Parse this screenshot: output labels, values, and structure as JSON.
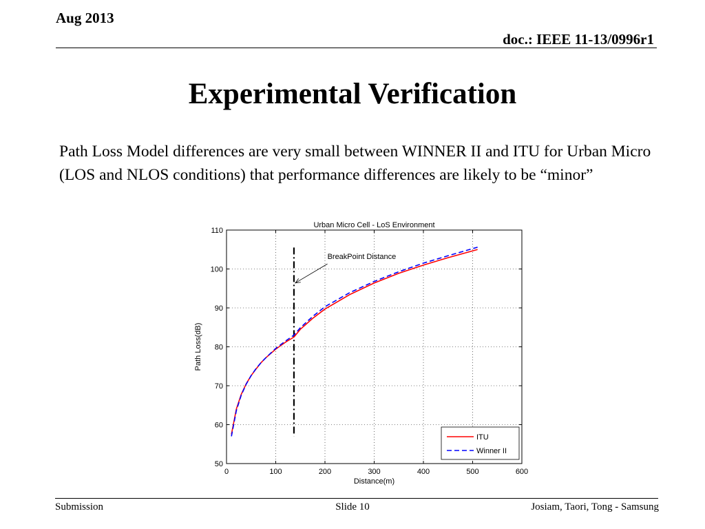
{
  "header": {
    "date": "Aug 2013",
    "doc_id": "doc.: IEEE 11-13/0996r1"
  },
  "slide": {
    "title": "Experimental Verification",
    "body": "Path Loss Model differences are very small between WINNER II and ITU for Urban Micro (LOS and NLOS conditions) that performance differences are likely to be “minor”"
  },
  "footer": {
    "left": "Submission",
    "center": "Slide 10",
    "right": "Josiam, Taori, Tong - Samsung"
  },
  "chart_data": {
    "type": "line",
    "title": "Urban Micro Cell - LoS Environment",
    "xlabel": "Distance(m)",
    "ylabel": "Path Loss(dB)",
    "xlim": [
      0,
      600
    ],
    "ylim": [
      50,
      110
    ],
    "xticks": [
      0,
      100,
      200,
      300,
      400,
      500,
      600
    ],
    "yticks": [
      50,
      60,
      70,
      80,
      90,
      100,
      110
    ],
    "grid": true,
    "legend_position": "bottom-right",
    "annotation": {
      "text": "BreakPoint Distance",
      "x": 137,
      "y_range": [
        57,
        105.5
      ]
    },
    "series": [
      {
        "name": "ITU",
        "color": "#ff0000",
        "style": "solid",
        "x": [
          10,
          20,
          30,
          40,
          50,
          60,
          70,
          80,
          100,
          120,
          137,
          150,
          175,
          200,
          250,
          300,
          350,
          400,
          450,
          510
        ],
        "y": [
          57.5,
          64,
          67.8,
          70.5,
          72.6,
          74.3,
          75.9,
          77.2,
          79.4,
          81.2,
          82.5,
          84.5,
          87.3,
          89.7,
          93.4,
          96.4,
          98.9,
          101.0,
          102.9,
          105.0
        ]
      },
      {
        "name": "Winner II",
        "color": "#0000ff",
        "style": "dashed",
        "x": [
          10,
          20,
          30,
          40,
          50,
          60,
          70,
          80,
          100,
          120,
          137,
          150,
          175,
          200,
          250,
          300,
          350,
          400,
          450,
          510
        ],
        "y": [
          57.0,
          63.6,
          67.6,
          70.4,
          72.6,
          74.4,
          75.9,
          77.2,
          79.6,
          81.5,
          83.0,
          84.9,
          87.8,
          90.3,
          93.9,
          96.8,
          99.3,
          101.5,
          103.4,
          105.6
        ]
      }
    ]
  }
}
